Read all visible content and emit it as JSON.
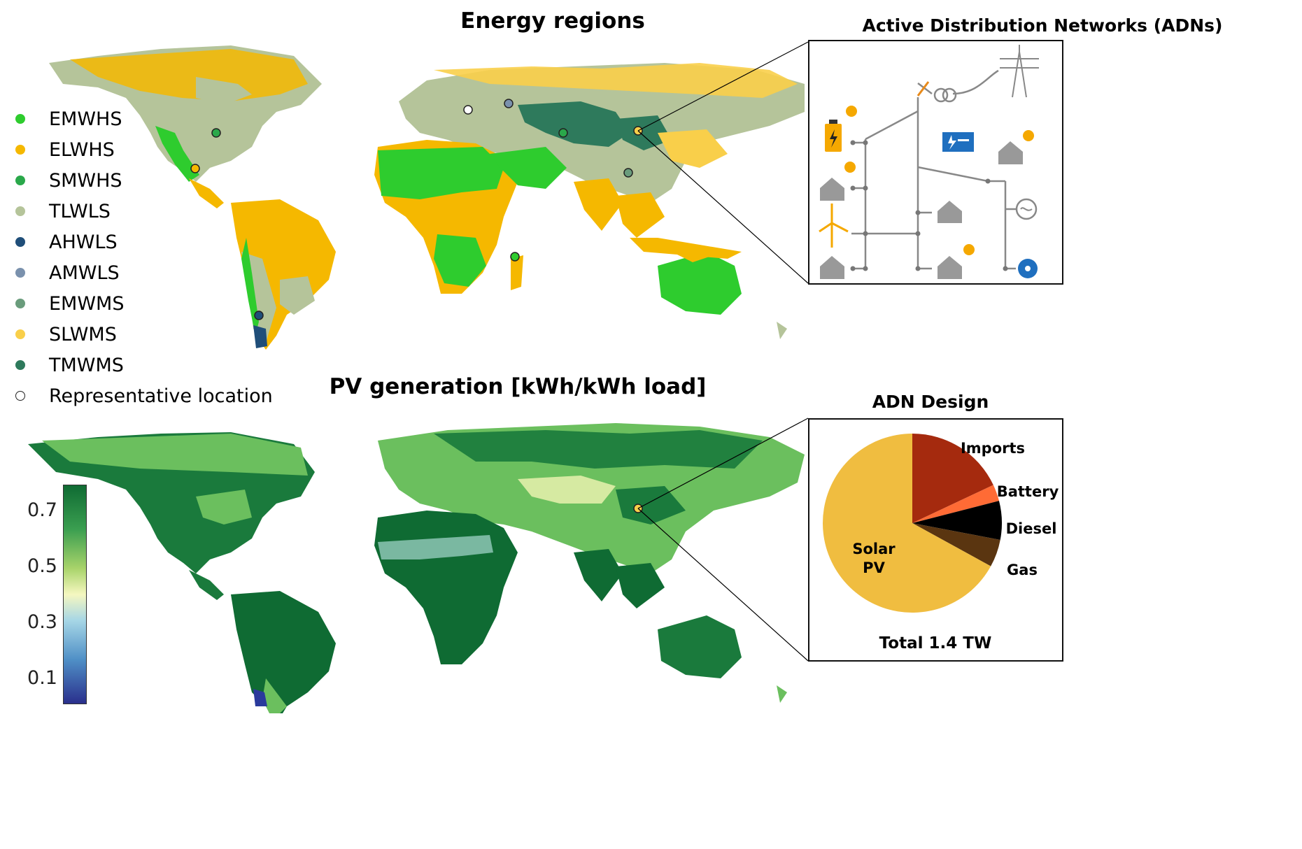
{
  "top": {
    "title": "Energy regions",
    "adn_title": "Active Distribution Networks (ADNs)"
  },
  "legend": {
    "items": [
      {
        "label": "EMWHS",
        "color": "#2ecc2e"
      },
      {
        "label": "ELWHS",
        "color": "#f5b800"
      },
      {
        "label": "SMWHS",
        "color": "#2aa84a"
      },
      {
        "label": "TLWLS",
        "color": "#b5c49a"
      },
      {
        "label": "AHWLS",
        "color": "#1f4e79"
      },
      {
        "label": "AMWLS",
        "color": "#7a91ad"
      },
      {
        "label": "EMWMS",
        "color": "#6a9c7c"
      },
      {
        "label": "SLWMS",
        "color": "#f9cf4a"
      },
      {
        "label": "TMWMS",
        "color": "#2e7a5c"
      }
    ],
    "representative_label": "Representative location"
  },
  "bottom": {
    "title": "PV generation [kWh/kWh load]",
    "colorbar_ticks": [
      "0.7",
      "0.5",
      "0.3",
      "0.1"
    ]
  },
  "chart_data": {
    "type": "pie",
    "title": "ADN Design",
    "subtitle": "Total 1.4 TW",
    "slices": [
      {
        "label": "Solar PV",
        "value": 67,
        "color": "#f0bd40"
      },
      {
        "label": "Imports",
        "value": 18,
        "color": "#a52a0e"
      },
      {
        "label": "Battery",
        "value": 3,
        "color": "#ff6b35"
      },
      {
        "label": "Diesel",
        "value": 7,
        "color": "#000000"
      },
      {
        "label": "Gas",
        "value": 5,
        "color": "#5a3510"
      }
    ]
  }
}
